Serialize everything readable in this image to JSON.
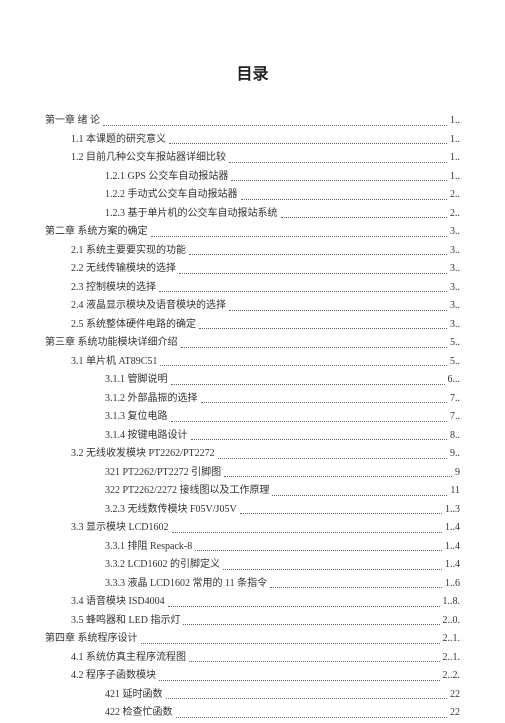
{
  "doc_title": "目录",
  "text_color": "#333333",
  "background_color": "#ffffff",
  "title_fontsize": 16,
  "body_fontsize": 10,
  "toc": [
    {
      "level": 0,
      "num": "第一章",
      "text": "绪 论",
      "page": "1.."
    },
    {
      "level": 1,
      "num": "1.1",
      "text": "本课题的研究意义",
      "page": "1.."
    },
    {
      "level": 1,
      "num": "1.2",
      "text": "目前几种公交车报站器详细比较",
      "page": "1.."
    },
    {
      "level": 2,
      "num": "1.2.1",
      "text": "GPS 公交车自动报站器",
      "page": "1.."
    },
    {
      "level": 2,
      "num": "1.2.2",
      "text": "手动式公交车自动报站器",
      "page": "2.."
    },
    {
      "level": 2,
      "num": "1.2.3",
      "text": "基于单片机的公交车自动报站系统",
      "page": "2.."
    },
    {
      "level": 0,
      "num": "第二章",
      "text": "系统方案的确定",
      "page": "3.."
    },
    {
      "level": 1,
      "num": "2.1",
      "text": "系统主要要实现的功能",
      "page": "3.."
    },
    {
      "level": 1,
      "num": "2.2",
      "text": "无线传输模块的选择",
      "page": "3.."
    },
    {
      "level": 1,
      "num": "2.3",
      "text": "控制模块的选择",
      "page": "3.."
    },
    {
      "level": 1,
      "num": "2.4",
      "text": "液晶显示模块及语音模块的选择",
      "page": "3.."
    },
    {
      "level": 1,
      "num": "2.5",
      "text": "系统整体硬件电路的确定",
      "page": "3.."
    },
    {
      "level": 0,
      "num": "第三章",
      "text": "系统功能模块详细介绍",
      "page": "5.."
    },
    {
      "level": 1,
      "num": "3.1",
      "text": "单片机 AT89C51",
      "page": "5.."
    },
    {
      "level": 2,
      "num": "3.1.1",
      "text": "管脚说明",
      "page": "6..."
    },
    {
      "level": 2,
      "num": "3.1.2",
      "text": "外部晶振的选择",
      "page": "7.."
    },
    {
      "level": 2,
      "num": "3.1.3",
      "text": "复位电路",
      "page": "7.."
    },
    {
      "level": 2,
      "num": "3.1.4",
      "text": "按键电路设计",
      "page": "8.."
    },
    {
      "level": 1,
      "num": "3.2",
      "text": "无线收发模块 PT2262/PT2272",
      "page": "9.."
    },
    {
      "level": 3,
      "num": "321",
      "text": "PT2262/PT2272 引脚图",
      "page": "9"
    },
    {
      "level": 3,
      "num": "322",
      "text": "PT2262/2272 接线图以及工作原理",
      "page": "11"
    },
    {
      "level": 2,
      "num": "3.2.3",
      "text": "无线数传模块 F05V/J05V",
      "page": "1..3"
    },
    {
      "level": 1,
      "num": "3.3",
      "text": "显示模块 LCD1602",
      "page": "1..4"
    },
    {
      "level": 2,
      "num": "3.3.1",
      "text": "排阻 Respack-8",
      "page": "1..4"
    },
    {
      "level": 2,
      "num": "3.3.2",
      "text": "LCD1602 的引脚定义",
      "page": "1..4"
    },
    {
      "level": 2,
      "num": "3.3.3",
      "text": "液晶 LCD1602 常用的 11 条指令",
      "page": "1..6"
    },
    {
      "level": 1,
      "num": "3.4",
      "text": "语音模块 ISD4004",
      "page": "1..8."
    },
    {
      "level": 1,
      "num": "3.5",
      "text": "蜂鸣器和 LED 指示灯",
      "page": "2..0."
    },
    {
      "level": 0,
      "num": "第四章",
      "text": "系统程序设计",
      "page": "2..1."
    },
    {
      "level": 1,
      "num": "4.1",
      "text": "系统仿真主程序流程图",
      "page": "2..1."
    },
    {
      "level": 1,
      "num": "4.2",
      "text": "程序子函数模块",
      "page": "2..2."
    },
    {
      "level": 3,
      "num": "421",
      "text": "延时函数",
      "page": "22"
    },
    {
      "level": 3,
      "num": "422",
      "text": "检查忙函数",
      "page": "22"
    }
  ]
}
